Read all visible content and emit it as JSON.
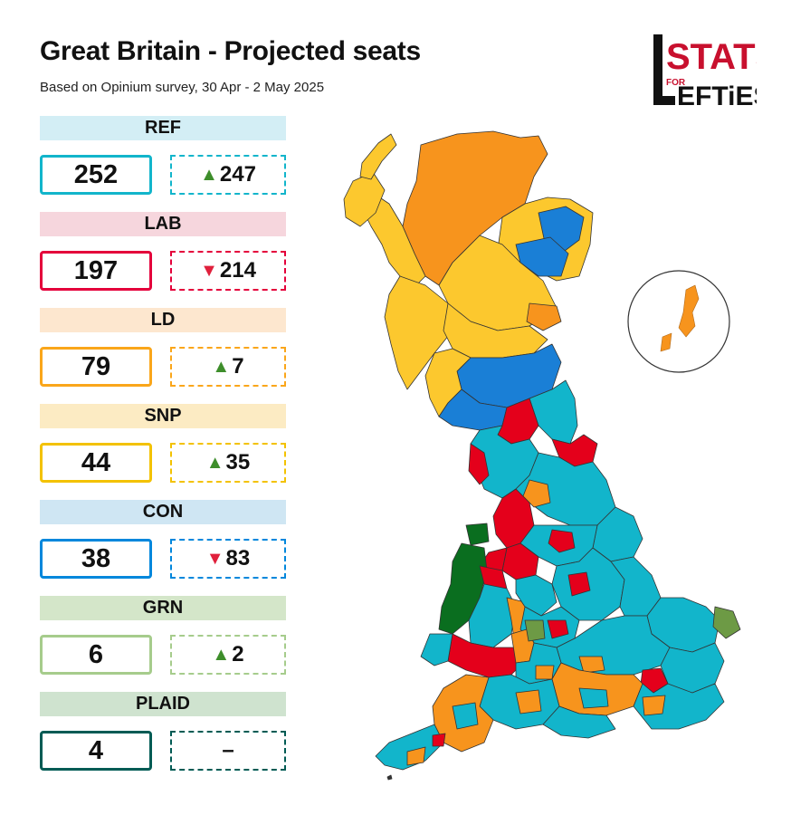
{
  "title": "Great Britain - Projected seats",
  "subtitle": "Based on Opinium survey, 30 Apr - 2 May 2025",
  "logo": {
    "text_top": "STATS",
    "text_for": "FOR",
    "text_bottom": "EFTiES"
  },
  "parties": [
    {
      "code": "REF",
      "seats": "252",
      "direction": "up",
      "change": "247",
      "color": "#12b5cb",
      "bg": "#d3eef5"
    },
    {
      "code": "LAB",
      "seats": "197",
      "direction": "down",
      "change": "214",
      "color": "#e4003b",
      "bg": "#f6d6dd"
    },
    {
      "code": "LD",
      "seats": "79",
      "direction": "up",
      "change": "7",
      "color": "#faa61a",
      "bg": "#fde7cf"
    },
    {
      "code": "SNP",
      "seats": "44",
      "direction": "up",
      "change": "35",
      "color": "#fdf38e",
      "bg": "#fcebc3"
    },
    {
      "code": "CON",
      "seats": "38",
      "direction": "down",
      "change": "83",
      "color": "#0087dc",
      "bg": "#cfe6f3"
    },
    {
      "code": "GRN",
      "seats": "6",
      "direction": "up",
      "change": "2",
      "color": "#6ab023",
      "bg": "#d4e6c9"
    },
    {
      "code": "PLAID",
      "seats": "4",
      "direction": "none",
      "change": "–",
      "color": "#005b54",
      "bg": "#cfe3cf"
    }
  ],
  "map_colors": {
    "ref": "#12b5cb",
    "lab": "#e4001b",
    "ld": "#f7941d",
    "snp": "#fcc82e",
    "con": "#1a7fd6",
    "grn": "#6d9a45",
    "plaid": "#0a6e1f"
  }
}
